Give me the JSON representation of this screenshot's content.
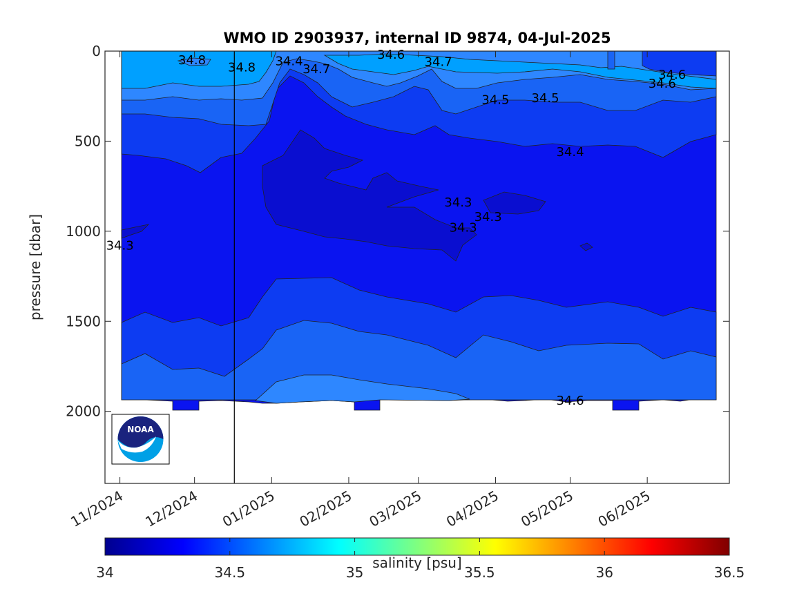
{
  "chart_data": {
    "type": "heatmap",
    "title": "WMO ID 2903937, internal ID 9874, 04-Jul-2025",
    "ylabel": "pressure [dbar]",
    "xlabel": "",
    "x_tick_labels": [
      "11/2024",
      "12/2024",
      "01/2025",
      "02/2025",
      "03/2025",
      "04/2025",
      "05/2025",
      "06/2025"
    ],
    "x_tick_dates": [
      "2024-11-01",
      "2024-12-01",
      "2025-01-01",
      "2025-02-01",
      "2025-03-01",
      "2025-04-01",
      "2025-05-01",
      "2025-06-01"
    ],
    "xlim": [
      "2024-10-26",
      "2025-07-04"
    ],
    "y_ticks": [
      0,
      500,
      1000,
      1500,
      2000
    ],
    "y_tick_labels": [
      "0",
      "500",
      "1000",
      "1500",
      "2000"
    ],
    "ylim": [
      0,
      2400
    ],
    "y_reversed": true,
    "grid": false,
    "vertical_marker_date": "2024-12-17",
    "colorbar": {
      "label": "salinity [psu]",
      "range": [
        34,
        36.5
      ],
      "ticks": [
        34,
        34.5,
        35,
        35.5,
        36,
        36.5
      ],
      "tick_labels": [
        "34",
        "34.5",
        "35",
        "35.5",
        "36",
        "36.5"
      ],
      "colormap": "jet",
      "placement": "bottom"
    },
    "contour_levels": [
      34.3,
      34.4,
      34.5,
      34.6,
      34.7,
      34.8
    ],
    "contour_labels": [
      {
        "text": "34.8",
        "date": "2024-11-30",
        "p": 50
      },
      {
        "text": "34.8",
        "date": "2024-12-20",
        "p": 90
      },
      {
        "text": "34.4",
        "date": "2025-01-08",
        "p": 55
      },
      {
        "text": "34.7",
        "date": "2025-01-19",
        "p": 100
      },
      {
        "text": "34.6",
        "date": "2025-02-18",
        "p": 20
      },
      {
        "text": "34.7",
        "date": "2025-03-09",
        "p": 60
      },
      {
        "text": "34.5",
        "date": "2025-04-01",
        "p": 270
      },
      {
        "text": "34.5",
        "date": "2025-04-21",
        "p": 260
      },
      {
        "text": "34.6",
        "date": "2025-06-11",
        "p": 130
      },
      {
        "text": "34.6",
        "date": "2025-06-07",
        "p": 180
      },
      {
        "text": "34.4",
        "date": "2025-05-01",
        "p": 560
      },
      {
        "text": "34.3",
        "date": "2025-03-17",
        "p": 840
      },
      {
        "text": "34.3",
        "date": "2025-03-29",
        "p": 920
      },
      {
        "text": "34.3",
        "date": "2025-03-19",
        "p": 980
      },
      {
        "text": "34.3",
        "date": "2024-11-01",
        "p": 1080
      },
      {
        "text": "34.6",
        "date": "2025-05-01",
        "p": 1940
      }
    ],
    "logo": "NOAA"
  }
}
